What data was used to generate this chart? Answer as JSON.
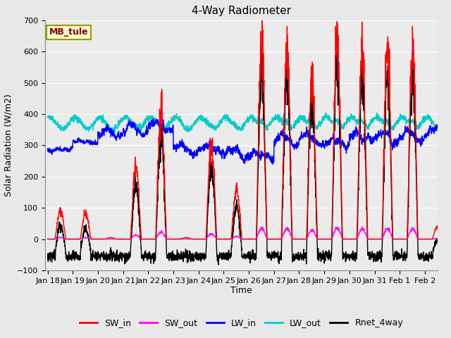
{
  "title": "4-Way Radiometer",
  "xlabel": "Time",
  "ylabel": "Solar Radiation (W/m2)",
  "ylim": [
    -100,
    700
  ],
  "yticks": [
    -100,
    0,
    100,
    200,
    300,
    400,
    500,
    600,
    700
  ],
  "x_tick_labels": [
    "Jan 18",
    "Jan 19",
    "Jan 20",
    "Jan 21",
    "Jan 22",
    "Jan 23",
    "Jan 24",
    "Jan 25",
    "Jan 26",
    "Jan 27",
    "Jan 28",
    "Jan 29",
    "Jan 30",
    "Jan 31",
    "Feb 1",
    "Feb 2"
  ],
  "station_label": "MB_tule",
  "station_label_color": "#8B0000",
  "station_box_facecolor": "#FFFACD",
  "station_box_edgecolor": "#999900",
  "line_colors": {
    "SW_in": "#FF0000",
    "SW_out": "#FF00FF",
    "LW_in": "#0000FF",
    "LW_out": "#00CCCC",
    "Rnet_4way": "#000000"
  },
  "line_width": 1.0,
  "bg_color": "#E8E8E8",
  "plot_bg_color": "#EBEBEB",
  "grid_color": "#FFFFFF",
  "title_fontsize": 11,
  "axis_label_fontsize": 9,
  "tick_fontsize": 8,
  "legend_fontsize": 9
}
